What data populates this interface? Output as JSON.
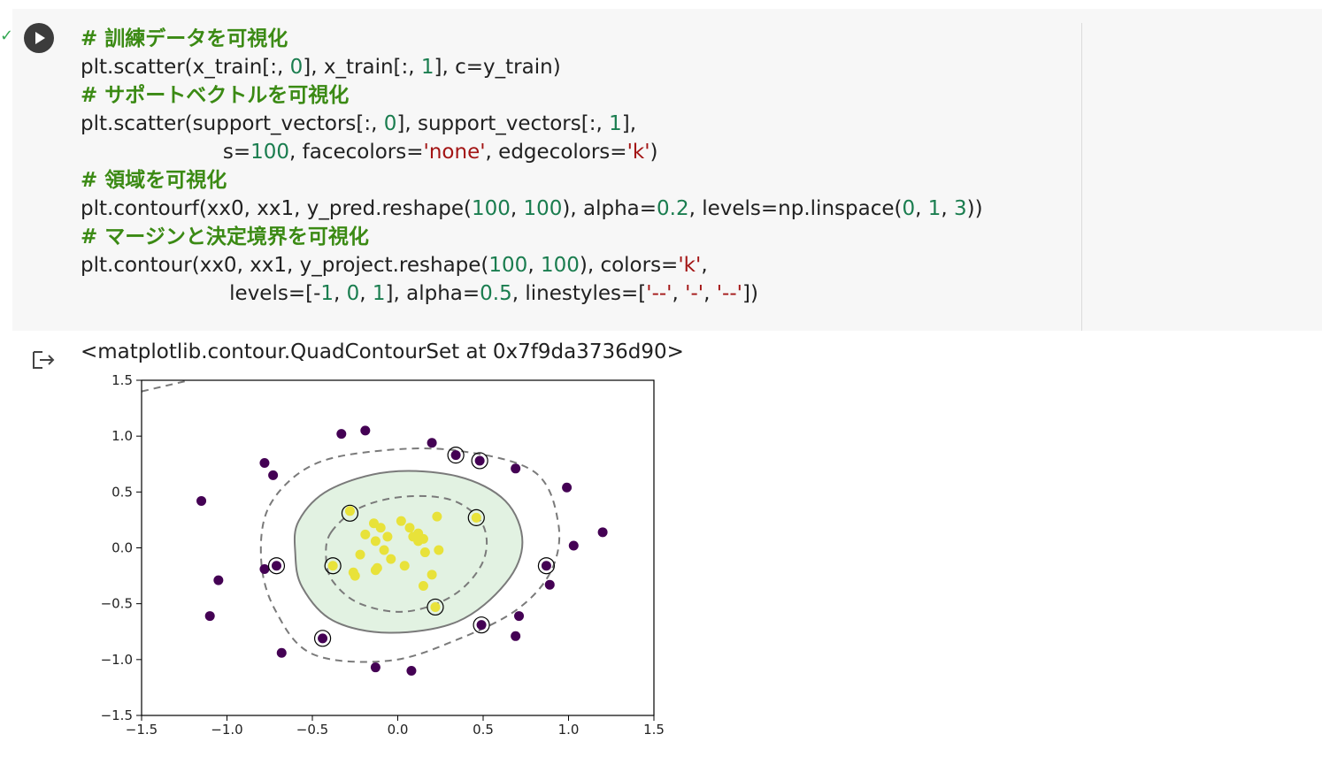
{
  "cell": {
    "status_mark": "✓",
    "code_lines": [
      [
        {
          "t": "# 訓練データを可視化",
          "k": "c"
        }
      ],
      [
        {
          "t": "plt.scatter(x_train[:, ",
          "k": "p"
        },
        {
          "t": "0",
          "k": "n"
        },
        {
          "t": "], x_train[:, ",
          "k": "p"
        },
        {
          "t": "1",
          "k": "n"
        },
        {
          "t": "], c=y_train)",
          "k": "p"
        }
      ],
      [
        {
          "t": "# サポートベクトルを可視化",
          "k": "c"
        }
      ],
      [
        {
          "t": "plt.scatter(support_vectors[:, ",
          "k": "p"
        },
        {
          "t": "0",
          "k": "n"
        },
        {
          "t": "], support_vectors[:, ",
          "k": "p"
        },
        {
          "t": "1",
          "k": "n"
        },
        {
          "t": "],",
          "k": "p"
        }
      ],
      [
        {
          "t": "                      s=",
          "k": "p"
        },
        {
          "t": "100",
          "k": "n"
        },
        {
          "t": ", facecolors=",
          "k": "p"
        },
        {
          "t": "'none'",
          "k": "s"
        },
        {
          "t": ", edgecolors=",
          "k": "p"
        },
        {
          "t": "'k'",
          "k": "s"
        },
        {
          "t": ")",
          "k": "p"
        }
      ],
      [
        {
          "t": "# 領域を可視化",
          "k": "c"
        }
      ],
      [
        {
          "t": "plt.contourf(xx0, xx1, y_pred.reshape(",
          "k": "p"
        },
        {
          "t": "100",
          "k": "n"
        },
        {
          "t": ", ",
          "k": "p"
        },
        {
          "t": "100",
          "k": "n"
        },
        {
          "t": "), alpha=",
          "k": "p"
        },
        {
          "t": "0.2",
          "k": "n"
        },
        {
          "t": ", levels=np.linspace(",
          "k": "p"
        },
        {
          "t": "0",
          "k": "n"
        },
        {
          "t": ", ",
          "k": "p"
        },
        {
          "t": "1",
          "k": "n"
        },
        {
          "t": ", ",
          "k": "p"
        },
        {
          "t": "3",
          "k": "n"
        },
        {
          "t": "))",
          "k": "p"
        }
      ],
      [
        {
          "t": "# マージンと決定境界を可視化",
          "k": "c"
        }
      ],
      [
        {
          "t": "plt.contour(xx0, xx1, y_project.reshape(",
          "k": "p"
        },
        {
          "t": "100",
          "k": "n"
        },
        {
          "t": ", ",
          "k": "p"
        },
        {
          "t": "100",
          "k": "n"
        },
        {
          "t": "), colors=",
          "k": "p"
        },
        {
          "t": "'k'",
          "k": "s"
        },
        {
          "t": ",",
          "k": "p"
        }
      ],
      [
        {
          "t": "                       levels=[-",
          "k": "p"
        },
        {
          "t": "1",
          "k": "n"
        },
        {
          "t": ", ",
          "k": "p"
        },
        {
          "t": "0",
          "k": "n"
        },
        {
          "t": ", ",
          "k": "p"
        },
        {
          "t": "1",
          "k": "n"
        },
        {
          "t": "], alpha=",
          "k": "p"
        },
        {
          "t": "0.5",
          "k": "n"
        },
        {
          "t": ", linestyles=[",
          "k": "p"
        },
        {
          "t": "'--'",
          "k": "s"
        },
        {
          "t": ", ",
          "k": "p"
        },
        {
          "t": "'-'",
          "k": "s"
        },
        {
          "t": ", ",
          "k": "p"
        },
        {
          "t": "'--'",
          "k": "s"
        },
        {
          "t": "])",
          "k": "p"
        }
      ]
    ]
  },
  "output": {
    "text": "<matplotlib.contour.QuadContourSet at 0x7f9da3736d90>"
  },
  "colors": {
    "purple": "#440154",
    "yellow": "#e8e23a",
    "fill": "#e2f2e2",
    "contour": "#7a7a7a"
  },
  "chart_data": {
    "type": "scatter",
    "xlim": [
      -1.5,
      1.5
    ],
    "ylim": [
      -1.5,
      1.5
    ],
    "xticks": [
      -1.5,
      -1.0,
      -0.5,
      0.0,
      0.5,
      1.0,
      1.5
    ],
    "yticks": [
      -1.5,
      -1.0,
      -0.5,
      0.0,
      0.5,
      1.0,
      1.5
    ],
    "xtick_labels": [
      "−1.5",
      "−1.0",
      "−0.5",
      "0.0",
      "0.5",
      "1.0",
      "1.5"
    ],
    "ytick_labels": [
      "−1.5",
      "−1.0",
      "−0.5",
      "0.0",
      "0.5",
      "1.0",
      "1.5"
    ],
    "class0_points": [
      [
        -1.15,
        0.42
      ],
      [
        -0.78,
        0.76
      ],
      [
        -0.73,
        0.65
      ],
      [
        -0.33,
        1.02
      ],
      [
        -0.19,
        1.05
      ],
      [
        0.2,
        0.94
      ],
      [
        0.34,
        0.83
      ],
      [
        0.48,
        0.78
      ],
      [
        0.69,
        0.71
      ],
      [
        0.99,
        0.54
      ],
      [
        1.2,
        0.14
      ],
      [
        1.03,
        0.02
      ],
      [
        0.87,
        -0.16
      ],
      [
        0.89,
        -0.33
      ],
      [
        0.71,
        -0.61
      ],
      [
        0.69,
        -0.79
      ],
      [
        0.49,
        -0.69
      ],
      [
        -0.71,
        -0.16
      ],
      [
        -0.78,
        -0.19
      ],
      [
        -1.05,
        -0.29
      ],
      [
        -1.1,
        -0.61
      ],
      [
        -0.68,
        -0.94
      ],
      [
        -0.44,
        -0.81
      ],
      [
        -0.13,
        -1.07
      ],
      [
        0.08,
        -1.1
      ]
    ],
    "class1_points": [
      [
        -0.28,
        0.33
      ],
      [
        -0.19,
        0.12
      ],
      [
        -0.14,
        0.22
      ],
      [
        -0.1,
        0.18
      ],
      [
        -0.13,
        0.06
      ],
      [
        -0.06,
        0.1
      ],
      [
        -0.08,
        -0.02
      ],
      [
        0.02,
        0.24
      ],
      [
        0.07,
        0.18
      ],
      [
        0.12,
        0.13
      ],
      [
        0.09,
        0.1
      ],
      [
        0.15,
        0.08
      ],
      [
        0.23,
        0.28
      ],
      [
        0.12,
        0.06
      ],
      [
        0.16,
        -0.04
      ],
      [
        0.24,
        -0.02
      ],
      [
        0.46,
        0.27
      ],
      [
        -0.22,
        -0.06
      ],
      [
        -0.12,
        -0.18
      ],
      [
        -0.04,
        -0.1
      ],
      [
        -0.26,
        -0.22
      ],
      [
        -0.25,
        -0.25
      ],
      [
        -0.13,
        -0.2
      ],
      [
        0.04,
        -0.16
      ],
      [
        0.2,
        -0.24
      ],
      [
        0.15,
        -0.34
      ],
      [
        0.22,
        -0.53
      ],
      [
        -0.38,
        -0.16
      ]
    ],
    "support_vectors": [
      [
        0.34,
        0.83
      ],
      [
        0.48,
        0.78
      ],
      [
        -0.28,
        0.31
      ],
      [
        0.46,
        0.27
      ],
      [
        -0.38,
        -0.16
      ],
      [
        -0.71,
        -0.16
      ],
      [
        0.87,
        -0.16
      ],
      [
        0.22,
        -0.53
      ],
      [
        0.49,
        -0.69
      ],
      [
        -0.44,
        -0.81
      ]
    ],
    "regions": [
      "decision_boundary_solid",
      "margin_dashed_outer",
      "margin_dashed_inner",
      "corner_margin_dashed"
    ]
  }
}
